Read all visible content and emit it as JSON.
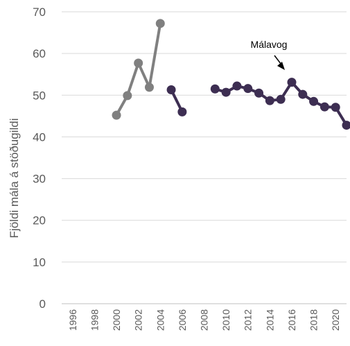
{
  "chart_data": {
    "type": "line",
    "ylabel": "Fjöldi mála á stöðugildi",
    "ylim": [
      0,
      70
    ],
    "yticks": [
      0,
      10,
      20,
      30,
      40,
      50,
      60,
      70
    ],
    "xticks": [
      1996,
      1998,
      2000,
      2002,
      2004,
      2006,
      2008,
      2010,
      2012,
      2014,
      2016,
      2018,
      2020
    ],
    "xlim": [
      1995,
      2021
    ],
    "grid": true,
    "series": [
      {
        "color": "#808080",
        "points": [
          [
            2000,
            45.2
          ],
          [
            2001,
            49.9
          ],
          [
            2002,
            57.7
          ],
          [
            2003,
            51.9
          ],
          [
            2004,
            67.2
          ]
        ]
      },
      {
        "color": "#3d2e52",
        "points": [
          [
            2005,
            51.3
          ],
          [
            2006,
            46.0
          ]
        ]
      },
      {
        "color": "#3d2e52",
        "points": [
          [
            2009,
            51.5
          ],
          [
            2010,
            50.7
          ],
          [
            2011,
            52.2
          ],
          [
            2012,
            51.6
          ],
          [
            2013,
            50.5
          ],
          [
            2014,
            48.7
          ],
          [
            2015,
            49.0
          ],
          [
            2016,
            53.1
          ],
          [
            2017,
            50.2
          ],
          [
            2018,
            48.5
          ],
          [
            2019,
            47.2
          ],
          [
            2020,
            47.1
          ],
          [
            2021,
            42.8
          ]
        ]
      }
    ],
    "annotation": {
      "text": "Málavog",
      "x": 2016,
      "y": 53.1
    }
  }
}
